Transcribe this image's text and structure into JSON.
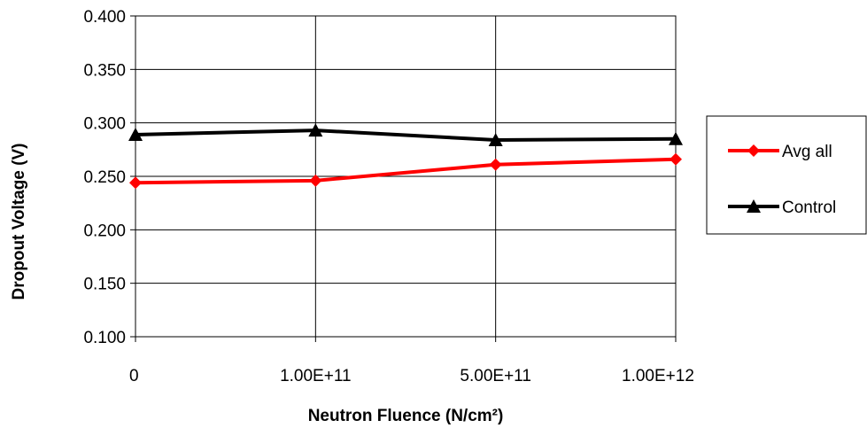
{
  "chart_data": {
    "type": "line",
    "title": "",
    "xlabel": "Neutron Fluence (N/cm²)",
    "ylabel": "Dropout Voltage (V)",
    "categories": [
      "0",
      "1.00E+11",
      "5.00E+11",
      "1.00E+12"
    ],
    "yticks": [
      "0.100",
      "0.150",
      "0.200",
      "0.250",
      "0.300",
      "0.350",
      "0.400"
    ],
    "ylim": [
      0.1,
      0.4
    ],
    "grid": true,
    "legend_position": "right",
    "series": [
      {
        "name": "Avg all",
        "values": [
          0.244,
          0.246,
          0.261,
          0.266
        ],
        "color": "#ff0000",
        "marker": "diamond"
      },
      {
        "name": "Control",
        "values": [
          0.289,
          0.293,
          0.284,
          0.285
        ],
        "color": "#000000",
        "marker": "triangle"
      }
    ]
  }
}
